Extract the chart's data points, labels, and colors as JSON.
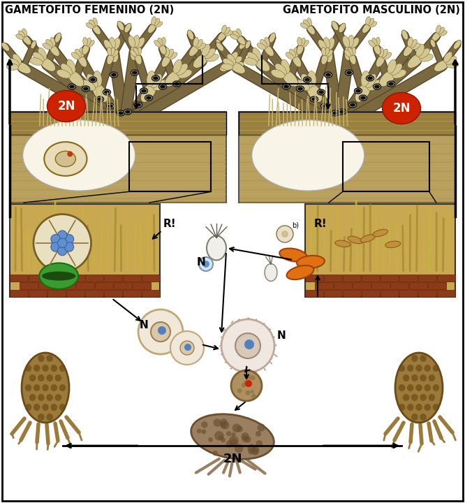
{
  "title_left": "GAMETOFITO FEMENINO (2N)",
  "title_right": "GAMETOFITO MASCULINO (2N)",
  "label_2N_bottom": "2N",
  "label_2N_left": "2N",
  "label_2N_right": "2N",
  "label_N_left": "N",
  "label_N_right": "N",
  "label_R_left": "R!",
  "label_R_right": "R!",
  "background_color": "#ffffff",
  "fig_width": 6.66,
  "fig_height": 7.2,
  "dpi": 100,
  "title_fontsize": 10.5,
  "seaweed_color": "#7a6840",
  "seaweed_tip_color": "#d4c890",
  "seaweed_dark_color": "#5a4a28",
  "oogonia_color": "#111111",
  "section_bg": "#b8a060",
  "section_dark": "#7a5c28",
  "detail_bg": "#c8a850",
  "brick_color": "#8B3A1A",
  "rhizoid_color": "#9B7A3A",
  "red_circle_color": "#cc2200",
  "orange_color": "#E07010",
  "green_color": "#3a8c30"
}
